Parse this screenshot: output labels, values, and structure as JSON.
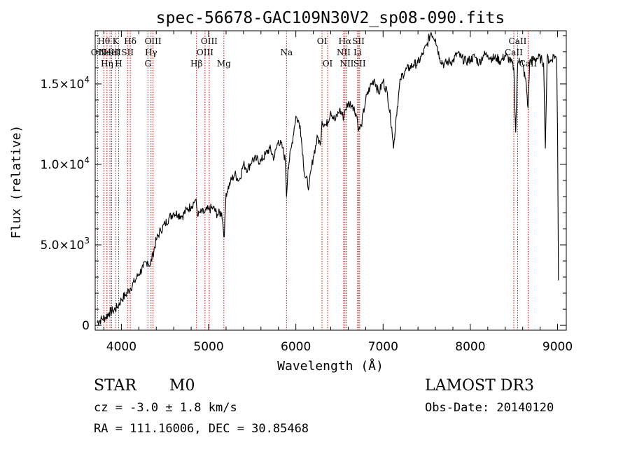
{
  "chart_data": {
    "type": "line",
    "title": "spec-56678-GAC109N30V2_sp08-090.fits",
    "xlabel": "Wavelength (Å)",
    "ylabel": "Flux (relative)",
    "xlim": [
      3700,
      9100
    ],
    "ylim": [
      -300,
      18300
    ],
    "xticks": [
      4000,
      5000,
      6000,
      7000,
      8000,
      9000
    ],
    "xtick_labels": [
      "4000",
      "5000",
      "6000",
      "7000",
      "8000",
      "9000"
    ],
    "yticks": [
      0,
      5000,
      10000,
      15000
    ],
    "ytick_labels": [
      {
        "mant": "0",
        "exp": ""
      },
      {
        "mant": "5.0×10",
        "exp": "3"
      },
      {
        "mant": "1.0×10",
        "exp": "4"
      },
      {
        "mant": "1.5×10",
        "exp": "4"
      }
    ],
    "series": [
      {
        "name": "flux",
        "x": [
          3720,
          3780,
          3820,
          3860,
          3900,
          3950,
          3980,
          4000,
          4050,
          4100,
          4150,
          4200,
          4250,
          4300,
          4330,
          4360,
          4400,
          4450,
          4500,
          4550,
          4600,
          4650,
          4700,
          4750,
          4800,
          4850,
          4880,
          4900,
          4950,
          5000,
          5050,
          5100,
          5150,
          5180,
          5200,
          5250,
          5300,
          5350,
          5400,
          5450,
          5500,
          5550,
          5600,
          5650,
          5700,
          5750,
          5800,
          5850,
          5880,
          5893,
          5910,
          5950,
          6000,
          6050,
          6100,
          6150,
          6200,
          6250,
          6280,
          6300,
          6350,
          6400,
          6450,
          6500,
          6550,
          6563,
          6600,
          6650,
          6700,
          6720,
          6750,
          6800,
          6850,
          6900,
          6950,
          7000,
          7050,
          7100,
          7120,
          7150,
          7200,
          7250,
          7300,
          7350,
          7400,
          7450,
          7500,
          7550,
          7600,
          7650,
          7700,
          7750,
          7800,
          7850,
          7900,
          7950,
          8000,
          8050,
          8100,
          8150,
          8200,
          8250,
          8300,
          8350,
          8400,
          8450,
          8498,
          8520,
          8542,
          8560,
          8600,
          8640,
          8662,
          8680,
          8720,
          8760,
          8800,
          8840,
          8860,
          8880,
          8920,
          8960,
          8990,
          9000,
          9010
        ],
        "y": [
          200,
          400,
          500,
          800,
          900,
          1100,
          1400,
          1600,
          1900,
          2300,
          2700,
          3200,
          3600,
          4000,
          3700,
          4400,
          5300,
          5900,
          6300,
          6700,
          7000,
          6900,
          6800,
          7200,
          7400,
          7800,
          6800,
          7000,
          7000,
          7200,
          7300,
          6900,
          7000,
          5500,
          8200,
          8900,
          9400,
          9000,
          10000,
          9700,
          10300,
          10300,
          10200,
          10600,
          11000,
          10400,
          11500,
          11000,
          10200,
          8000,
          9800,
          11100,
          13000,
          12400,
          9400,
          8600,
          10500,
          11700,
          11200,
          12700,
          12400,
          13300,
          12700,
          13400,
          12900,
          13400,
          13800,
          13700,
          13000,
          12100,
          12400,
          14000,
          14800,
          15300,
          14400,
          15200,
          14400,
          12300,
          11000,
          13000,
          15300,
          15800,
          16000,
          16200,
          16300,
          16800,
          17400,
          18200,
          17800,
          16600,
          16200,
          16400,
          16400,
          16900,
          16600,
          16400,
          16500,
          16700,
          16300,
          16800,
          16800,
          16600,
          16600,
          16400,
          16800,
          16500,
          16000,
          12000,
          16200,
          16600,
          16200,
          15000,
          13500,
          16400,
          16500,
          16600,
          16600,
          16300,
          11000,
          16600,
          16400,
          16800,
          16500,
          12000,
          2800
        ]
      }
    ],
    "emission_lines": [
      {
        "w": 3727,
        "label": "OII",
        "row": 1
      },
      {
        "w": 3798,
        "label": "Hθ",
        "row": 0
      },
      {
        "w": 3835,
        "label": "Hη",
        "row": 2
      },
      {
        "w": 3869,
        "label": "NeIII",
        "row": 1
      },
      {
        "w": 3889,
        "label": "HeI",
        "row": 1
      },
      {
        "w": 3934,
        "label": "K",
        "row": 0
      },
      {
        "w": 3969,
        "label": "H",
        "row": 2
      },
      {
        "w": 4071,
        "label": "SII",
        "row": 1
      },
      {
        "w": 4102,
        "label": "Hδ",
        "row": 0
      },
      {
        "w": 4304,
        "label": "G",
        "row": 2
      },
      {
        "w": 4340,
        "label": "Hγ",
        "row": 1
      },
      {
        "w": 4363,
        "label": "OIII",
        "row": 0
      },
      {
        "w": 4861,
        "label": "Hβ",
        "row": 2
      },
      {
        "w": 4959,
        "label": "OIII",
        "row": 1
      },
      {
        "w": 5007,
        "label": "OIII",
        "row": 0
      },
      {
        "w": 5175,
        "label": "Mg",
        "row": 2
      },
      {
        "w": 5893,
        "label": "Na",
        "row": 1
      },
      {
        "w": 6300,
        "label": "OI",
        "row": 0
      },
      {
        "w": 6364,
        "label": "OI",
        "row": 2
      },
      {
        "w": 6548,
        "label": "NII",
        "row": 1
      },
      {
        "w": 6563,
        "label": "Hα",
        "row": 0
      },
      {
        "w": 6584,
        "label": "NII",
        "row": 2
      },
      {
        "w": 6708,
        "label": "Li",
        "row": 1
      },
      {
        "w": 6717,
        "label": "SII",
        "row": 0
      },
      {
        "w": 6731,
        "label": "SII",
        "row": 2
      },
      {
        "w": 8498,
        "label": "CaII",
        "row": 1
      },
      {
        "w": 8542,
        "label": "CaII",
        "row": 0
      },
      {
        "w": 8662,
        "label": "CaII",
        "row": 2
      }
    ]
  },
  "info": {
    "class": "STAR",
    "subclass": "M0",
    "redshift": "cz = -3.0 ± 1.8 km/s",
    "coords": "RA = 111.16006, DEC =  30.85468",
    "survey": "LAMOST DR3",
    "obs_date": "Obs-Date: 20140120"
  },
  "colors": {
    "spectrum": "#000000",
    "line_markers": "#cc0000"
  }
}
